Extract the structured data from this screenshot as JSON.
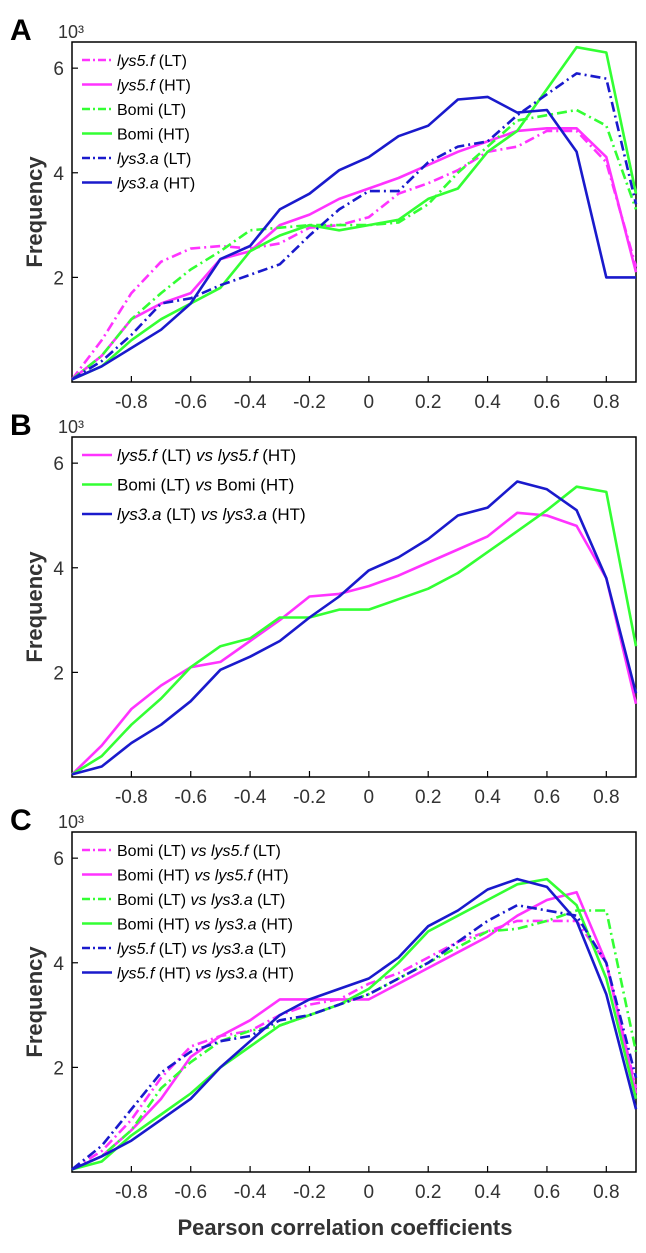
{
  "xlabel": "Pearson correlation coefficients",
  "ylabel": "Frequency",
  "y_multiplier": "10³",
  "colors": {
    "magenta": "#ff33ff",
    "green": "#33ff33",
    "blue": "#1a1acc"
  },
  "chart_data": [
    {
      "panel": "A",
      "type": "line",
      "xlim": [
        -1,
        0.9
      ],
      "ylim": [
        0,
        6.5
      ],
      "xticks": [
        -0.8,
        -0.6,
        -0.4,
        -0.2,
        0,
        0.2,
        0.4,
        0.6,
        0.8
      ],
      "xtick_labels": [
        "-0.8",
        "-0.6",
        "-0.4",
        "-0.2",
        "0",
        "0.2",
        "0.4",
        "0.6",
        "0.8"
      ],
      "yticks": [
        2,
        4,
        6
      ],
      "ytick_labels": [
        "2",
        "4",
        "6"
      ],
      "x": [
        -1.0,
        -0.9,
        -0.8,
        -0.7,
        -0.6,
        -0.5,
        -0.4,
        -0.3,
        -0.2,
        -0.1,
        0.0,
        0.1,
        0.2,
        0.3,
        0.4,
        0.5,
        0.6,
        0.7,
        0.8,
        0.9
      ],
      "legend_position": "top-left",
      "series": [
        {
          "label_parts": [
            {
              "t": "lys5.f",
              "i": true
            },
            {
              "t": " (LT)",
              "i": false
            }
          ],
          "color": "magenta",
          "dash": true,
          "values": [
            0.05,
            0.8,
            1.7,
            2.3,
            2.55,
            2.6,
            2.55,
            2.65,
            2.95,
            3.0,
            3.15,
            3.6,
            3.8,
            4.05,
            4.4,
            4.5,
            4.8,
            4.8,
            4.2,
            2.2
          ]
        },
        {
          "label_parts": [
            {
              "t": "lys5.f",
              "i": true
            },
            {
              "t": " (HT)",
              "i": false
            }
          ],
          "color": "magenta",
          "dash": false,
          "values": [
            0.05,
            0.5,
            1.2,
            1.5,
            1.7,
            2.35,
            2.5,
            3.0,
            3.2,
            3.5,
            3.7,
            3.9,
            4.15,
            4.4,
            4.6,
            4.8,
            4.85,
            4.85,
            4.3,
            2.1
          ]
        },
        {
          "label_parts": [
            {
              "t": "Bomi (LT)",
              "i": false
            }
          ],
          "color": "green",
          "dash": true,
          "values": [
            0.05,
            0.5,
            1.2,
            1.7,
            2.15,
            2.5,
            2.9,
            2.95,
            3.0,
            3.0,
            3.0,
            3.05,
            3.4,
            4.0,
            4.5,
            5.0,
            5.1,
            5.2,
            4.9,
            3.3
          ]
        },
        {
          "label_parts": [
            {
              "t": "Bomi (HT)",
              "i": false
            }
          ],
          "color": "green",
          "dash": false,
          "values": [
            0.05,
            0.3,
            0.8,
            1.2,
            1.5,
            1.8,
            2.5,
            2.8,
            3.0,
            2.9,
            3.0,
            3.1,
            3.5,
            3.7,
            4.4,
            4.8,
            5.6,
            6.4,
            6.3,
            3.6
          ]
        },
        {
          "label_parts": [
            {
              "t": "lys3.a",
              "i": true
            },
            {
              "t": " (LT)",
              "i": false
            }
          ],
          "color": "blue",
          "dash": true,
          "values": [
            0.05,
            0.4,
            0.9,
            1.5,
            1.6,
            1.85,
            2.05,
            2.25,
            2.8,
            3.3,
            3.65,
            3.65,
            4.2,
            4.5,
            4.6,
            5.1,
            5.5,
            5.9,
            5.8,
            3.4
          ]
        },
        {
          "label_parts": [
            {
              "t": "lys3.a",
              "i": true
            },
            {
              "t": " (HT)",
              "i": false
            }
          ],
          "color": "blue",
          "dash": false,
          "values": [
            0.05,
            0.3,
            0.65,
            1.0,
            1.5,
            2.35,
            2.6,
            3.3,
            3.6,
            4.05,
            4.3,
            4.7,
            4.9,
            5.4,
            5.45,
            5.15,
            5.2,
            4.4,
            2.0,
            2.0
          ]
        }
      ]
    },
    {
      "panel": "B",
      "type": "line",
      "xlim": [
        -1,
        0.9
      ],
      "ylim": [
        0,
        6.5
      ],
      "xticks": [
        -0.8,
        -0.6,
        -0.4,
        -0.2,
        0,
        0.2,
        0.4,
        0.6,
        0.8
      ],
      "xtick_labels": [
        "-0.8",
        "-0.6",
        "-0.4",
        "-0.2",
        "0",
        "0.2",
        "0.4",
        "0.6",
        "0.8"
      ],
      "yticks": [
        2,
        4,
        6
      ],
      "ytick_labels": [
        "2",
        "4",
        "6"
      ],
      "x": [
        -1.0,
        -0.9,
        -0.8,
        -0.7,
        -0.6,
        -0.5,
        -0.4,
        -0.3,
        -0.2,
        -0.1,
        0.0,
        0.1,
        0.2,
        0.3,
        0.4,
        0.5,
        0.6,
        0.7,
        0.8,
        0.9
      ],
      "legend_position": "top-left",
      "series": [
        {
          "label_parts": [
            {
              "t": "lys5.f",
              "i": true
            },
            {
              "t": " (LT) ",
              "i": false
            },
            {
              "t": "vs",
              "i": true
            },
            {
              "t": " ",
              "i": false
            },
            {
              "t": "lys5.f",
              "i": true
            },
            {
              "t": " (HT)",
              "i": false
            }
          ],
          "color": "magenta",
          "dash": false,
          "values": [
            0.05,
            0.6,
            1.3,
            1.75,
            2.1,
            2.2,
            2.6,
            3.0,
            3.45,
            3.5,
            3.65,
            3.85,
            4.1,
            4.35,
            4.6,
            5.05,
            5.0,
            4.8,
            3.8,
            1.4
          ]
        },
        {
          "label_parts": [
            {
              "t": "Bomi (LT) ",
              "i": false
            },
            {
              "t": "vs",
              "i": true
            },
            {
              "t": " Bomi (HT)",
              "i": false
            }
          ],
          "color": "green",
          "dash": false,
          "values": [
            0.05,
            0.4,
            1.0,
            1.5,
            2.1,
            2.5,
            2.65,
            3.05,
            3.05,
            3.2,
            3.2,
            3.4,
            3.6,
            3.9,
            4.3,
            4.7,
            5.1,
            5.55,
            5.45,
            2.5
          ]
        },
        {
          "label_parts": [
            {
              "t": "lys3.a",
              "i": true
            },
            {
              "t": " (LT) ",
              "i": false
            },
            {
              "t": "vs",
              "i": true
            },
            {
              "t": " ",
              "i": false
            },
            {
              "t": "lys3.a",
              "i": true
            },
            {
              "t": " (HT)",
              "i": false
            }
          ],
          "color": "blue",
          "dash": false,
          "values": [
            0.05,
            0.2,
            0.65,
            1.0,
            1.45,
            2.05,
            2.3,
            2.6,
            3.05,
            3.45,
            3.95,
            4.2,
            4.55,
            5.0,
            5.15,
            5.65,
            5.5,
            5.1,
            3.8,
            1.6
          ]
        }
      ]
    },
    {
      "panel": "C",
      "type": "line",
      "xlim": [
        -1,
        0.9
      ],
      "ylim": [
        0,
        6.5
      ],
      "xticks": [
        -0.8,
        -0.6,
        -0.4,
        -0.2,
        0,
        0.2,
        0.4,
        0.6,
        0.8
      ],
      "xtick_labels": [
        "-0.8",
        "-0.6",
        "-0.4",
        "-0.2",
        "0",
        "0.2",
        "0.4",
        "0.6",
        "0.8"
      ],
      "yticks": [
        2,
        4,
        6
      ],
      "ytick_labels": [
        "2",
        "4",
        "6"
      ],
      "x": [
        -1.0,
        -0.9,
        -0.8,
        -0.7,
        -0.6,
        -0.5,
        -0.4,
        -0.3,
        -0.2,
        -0.1,
        0.0,
        0.1,
        0.2,
        0.3,
        0.4,
        0.5,
        0.6,
        0.7,
        0.8,
        0.9
      ],
      "legend_position": "top-left",
      "series": [
        {
          "label_parts": [
            {
              "t": "Bomi (LT) ",
              "i": false
            },
            {
              "t": "vs",
              "i": true
            },
            {
              "t": " ",
              "i": false
            },
            {
              "t": "lys5.f",
              "i": true
            },
            {
              "t": " (LT)",
              "i": false
            }
          ],
          "color": "magenta",
          "dash": true,
          "values": [
            0.05,
            0.4,
            1.0,
            1.8,
            2.4,
            2.6,
            2.7,
            3.0,
            3.2,
            3.3,
            3.6,
            3.8,
            4.1,
            4.4,
            4.6,
            4.8,
            4.8,
            4.8,
            4.0,
            1.6
          ]
        },
        {
          "label_parts": [
            {
              "t": "Bomi (HT) ",
              "i": false
            },
            {
              "t": "vs",
              "i": true
            },
            {
              "t": " ",
              "i": false
            },
            {
              "t": "lys5.f",
              "i": true
            },
            {
              "t": " (HT)",
              "i": false
            }
          ],
          "color": "magenta",
          "dash": false,
          "values": [
            0.05,
            0.3,
            0.8,
            1.4,
            2.2,
            2.6,
            2.9,
            3.3,
            3.3,
            3.3,
            3.3,
            3.6,
            3.9,
            4.2,
            4.5,
            4.9,
            5.2,
            5.35,
            4.0,
            1.5
          ]
        },
        {
          "label_parts": [
            {
              "t": "Bomi (LT) ",
              "i": false
            },
            {
              "t": "vs",
              "i": true
            },
            {
              "t": " ",
              "i": false
            },
            {
              "t": "lys3.a",
              "i": true
            },
            {
              "t": " (LT)",
              "i": false
            }
          ],
          "color": "green",
          "dash": true,
          "values": [
            0.05,
            0.3,
            0.8,
            1.6,
            2.1,
            2.5,
            2.7,
            2.8,
            3.0,
            3.2,
            3.4,
            3.7,
            4.0,
            4.3,
            4.6,
            4.65,
            4.8,
            5.0,
            5.0,
            2.3
          ]
        },
        {
          "label_parts": [
            {
              "t": "Bomi (HT) ",
              "i": false
            },
            {
              "t": "vs",
              "i": true
            },
            {
              "t": " ",
              "i": false
            },
            {
              "t": "lys3.a",
              "i": true
            },
            {
              "t": " (HT)",
              "i": false
            }
          ],
          "color": "green",
          "dash": false,
          "values": [
            0.05,
            0.2,
            0.7,
            1.1,
            1.5,
            2.0,
            2.4,
            2.8,
            3.0,
            3.2,
            3.5,
            4.0,
            4.6,
            4.9,
            5.2,
            5.5,
            5.6,
            5.1,
            3.7,
            1.4
          ]
        },
        {
          "label_parts": [
            {
              "t": "lys5.f",
              "i": true
            },
            {
              "t": " (LT) ",
              "i": false
            },
            {
              "t": "vs",
              "i": true
            },
            {
              "t": " ",
              "i": false
            },
            {
              "t": "lys3.a",
              "i": true
            },
            {
              "t": " (LT)",
              "i": false
            }
          ],
          "color": "blue",
          "dash": true,
          "values": [
            0.05,
            0.5,
            1.2,
            1.9,
            2.3,
            2.5,
            2.6,
            2.9,
            3.0,
            3.2,
            3.4,
            3.7,
            4.0,
            4.4,
            4.8,
            5.1,
            5.0,
            4.9,
            4.0,
            1.8
          ]
        },
        {
          "label_parts": [
            {
              "t": "lys5.f",
              "i": true
            },
            {
              "t": " (HT) ",
              "i": false
            },
            {
              "t": "vs",
              "i": true
            },
            {
              "t": " ",
              "i": false
            },
            {
              "t": "lys3.a",
              "i": true
            },
            {
              "t": " (HT)",
              "i": false
            }
          ],
          "color": "blue",
          "dash": false,
          "values": [
            0.05,
            0.3,
            0.6,
            1.0,
            1.4,
            2.0,
            2.5,
            3.0,
            3.3,
            3.5,
            3.7,
            4.1,
            4.7,
            5.0,
            5.4,
            5.6,
            5.45,
            4.8,
            3.4,
            1.2
          ]
        }
      ]
    }
  ]
}
